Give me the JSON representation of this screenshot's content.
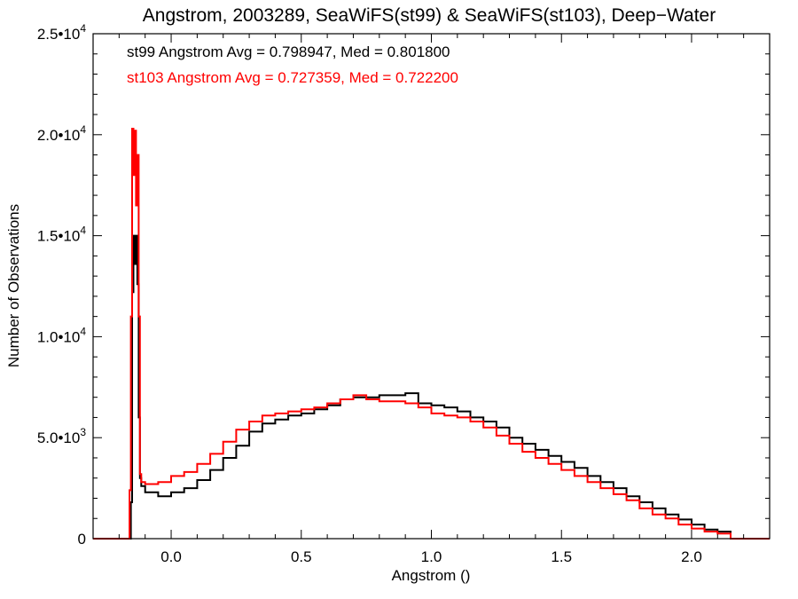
{
  "chart_data": {
    "type": "line",
    "step": true,
    "title": "Angstrom, 2003289, SeaWiFS(st99) & SeaWiFS(st103), Deep−Water",
    "xlabel": "Angstrom ()",
    "ylabel": "Number of Observations",
    "xlim": [
      -0.3,
      2.3
    ],
    "ylim": [
      0,
      25000
    ],
    "grid": false,
    "x_ticks": [
      {
        "value": 0.0,
        "label": "0.0"
      },
      {
        "value": 0.5,
        "label": "0.5"
      },
      {
        "value": 1.0,
        "label": "1.0"
      },
      {
        "value": 1.5,
        "label": "1.5"
      },
      {
        "value": 2.0,
        "label": "2.0"
      }
    ],
    "y_ticks": [
      {
        "value": 0,
        "mantissa": "0",
        "exp": ""
      },
      {
        "value": 5000,
        "mantissa": "5.0•10",
        "exp": "3"
      },
      {
        "value": 10000,
        "mantissa": "1.0•10",
        "exp": "4"
      },
      {
        "value": 15000,
        "mantissa": "1.5•10",
        "exp": "4"
      },
      {
        "value": 20000,
        "mantissa": "2.0•10",
        "exp": "4"
      },
      {
        "value": 25000,
        "mantissa": "2.5•10",
        "exp": "4"
      }
    ],
    "legend": [
      {
        "text": "st99 Angstrom Avg = 0.798947, Med = 0.801800",
        "color": "#000000"
      },
      {
        "text": "st103 Angstrom Avg = 0.727359, Med = 0.722200",
        "color": "#ff0000"
      }
    ],
    "series": [
      {
        "color": "#000000",
        "points": [
          [
            -0.3,
            0
          ],
          [
            -0.2,
            0
          ],
          [
            -0.16,
            0
          ],
          [
            -0.155,
            1800
          ],
          [
            -0.15,
            12200
          ],
          [
            -0.145,
            15000
          ],
          [
            -0.14,
            13600
          ],
          [
            -0.135,
            15000
          ],
          [
            -0.13,
            12600
          ],
          [
            -0.125,
            6000
          ],
          [
            -0.12,
            3000
          ],
          [
            -0.115,
            2600
          ],
          [
            -0.1,
            2300
          ],
          [
            -0.05,
            2100
          ],
          [
            0.0,
            2300
          ],
          [
            0.05,
            2500
          ],
          [
            0.1,
            2900
          ],
          [
            0.15,
            3400
          ],
          [
            0.2,
            4000
          ],
          [
            0.25,
            4600
          ],
          [
            0.3,
            5300
          ],
          [
            0.35,
            5700
          ],
          [
            0.4,
            5900
          ],
          [
            0.45,
            6100
          ],
          [
            0.5,
            6200
          ],
          [
            0.55,
            6400
          ],
          [
            0.6,
            6600
          ],
          [
            0.65,
            6900
          ],
          [
            0.7,
            7000
          ],
          [
            0.75,
            7000
          ],
          [
            0.8,
            7100
          ],
          [
            0.85,
            7100
          ],
          [
            0.9,
            7200
          ],
          [
            0.95,
            6700
          ],
          [
            1.0,
            6600
          ],
          [
            1.05,
            6500
          ],
          [
            1.1,
            6300
          ],
          [
            1.15,
            6000
          ],
          [
            1.2,
            5800
          ],
          [
            1.25,
            5500
          ],
          [
            1.3,
            5000
          ],
          [
            1.35,
            4700
          ],
          [
            1.4,
            4400
          ],
          [
            1.45,
            4100
          ],
          [
            1.5,
            3800
          ],
          [
            1.55,
            3500
          ],
          [
            1.6,
            3100
          ],
          [
            1.65,
            2800
          ],
          [
            1.7,
            2500
          ],
          [
            1.75,
            2100
          ],
          [
            1.8,
            1800
          ],
          [
            1.85,
            1500
          ],
          [
            1.9,
            1200
          ],
          [
            1.95,
            950
          ],
          [
            2.0,
            700
          ],
          [
            2.05,
            450
          ],
          [
            2.1,
            350
          ],
          [
            2.15,
            0
          ],
          [
            2.3,
            0
          ]
        ]
      },
      {
        "color": "#ff0000",
        "points": [
          [
            -0.3,
            0
          ],
          [
            -0.2,
            0
          ],
          [
            -0.165,
            0
          ],
          [
            -0.16,
            2400
          ],
          [
            -0.155,
            11000
          ],
          [
            -0.15,
            20300
          ],
          [
            -0.145,
            18000
          ],
          [
            -0.14,
            20200
          ],
          [
            -0.135,
            16500
          ],
          [
            -0.13,
            19000
          ],
          [
            -0.125,
            11000
          ],
          [
            -0.12,
            3200
          ],
          [
            -0.115,
            2800
          ],
          [
            -0.1,
            2700
          ],
          [
            -0.05,
            2800
          ],
          [
            0.0,
            3100
          ],
          [
            0.05,
            3300
          ],
          [
            0.1,
            3700
          ],
          [
            0.15,
            4200
          ],
          [
            0.2,
            4800
          ],
          [
            0.25,
            5400
          ],
          [
            0.3,
            5800
          ],
          [
            0.35,
            6100
          ],
          [
            0.4,
            6200
          ],
          [
            0.45,
            6300
          ],
          [
            0.5,
            6400
          ],
          [
            0.55,
            6500
          ],
          [
            0.6,
            6700
          ],
          [
            0.65,
            6900
          ],
          [
            0.7,
            7100
          ],
          [
            0.75,
            6900
          ],
          [
            0.8,
            6800
          ],
          [
            0.85,
            6800
          ],
          [
            0.9,
            6700
          ],
          [
            0.95,
            6500
          ],
          [
            1.0,
            6200
          ],
          [
            1.05,
            6100
          ],
          [
            1.1,
            6000
          ],
          [
            1.15,
            5800
          ],
          [
            1.2,
            5500
          ],
          [
            1.25,
            5100
          ],
          [
            1.3,
            4700
          ],
          [
            1.35,
            4300
          ],
          [
            1.4,
            4000
          ],
          [
            1.45,
            3700
          ],
          [
            1.5,
            3400
          ],
          [
            1.55,
            3100
          ],
          [
            1.6,
            2800
          ],
          [
            1.65,
            2500
          ],
          [
            1.7,
            2200
          ],
          [
            1.75,
            1900
          ],
          [
            1.8,
            1500
          ],
          [
            1.85,
            1200
          ],
          [
            1.9,
            1000
          ],
          [
            1.95,
            700
          ],
          [
            2.0,
            500
          ],
          [
            2.05,
            350
          ],
          [
            2.1,
            250
          ],
          [
            2.15,
            0
          ],
          [
            2.3,
            0
          ]
        ]
      }
    ]
  }
}
